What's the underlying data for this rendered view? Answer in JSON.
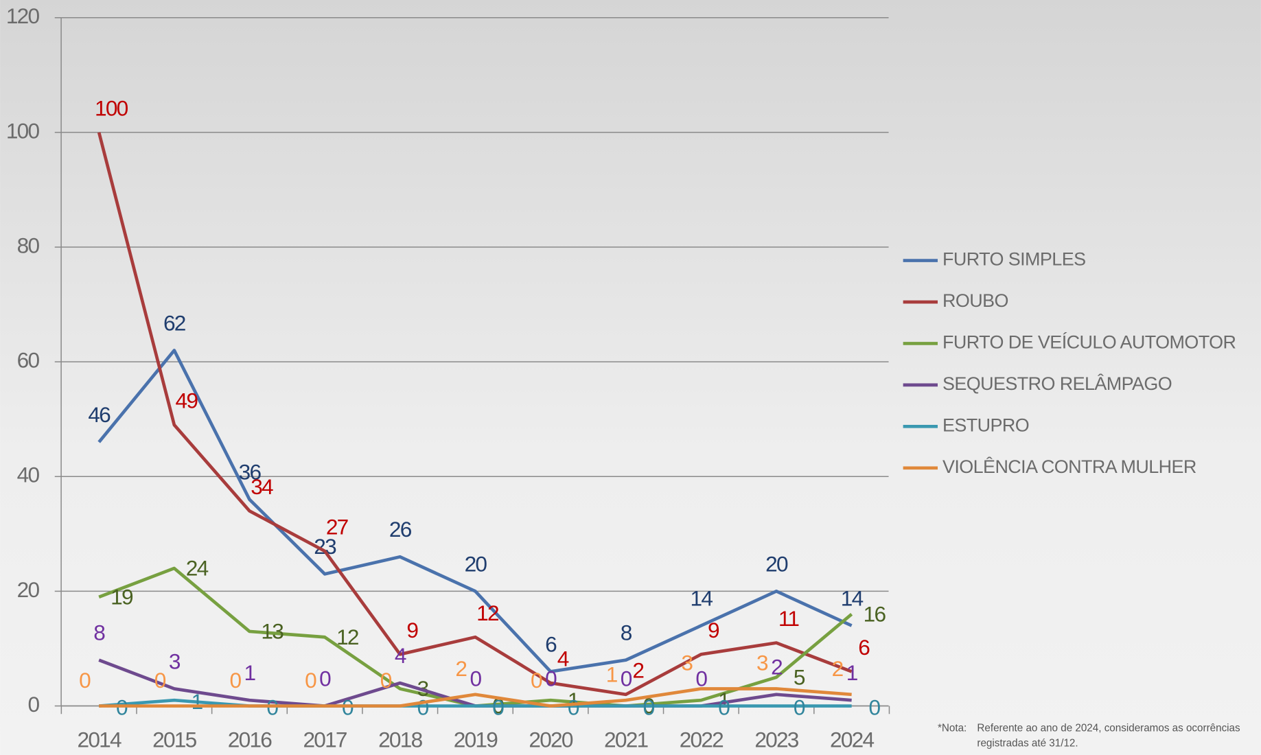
{
  "chart_data": {
    "type": "line",
    "categories": [
      "2014",
      "2015",
      "2016",
      "2017",
      "2018",
      "2019",
      "2020",
      "2021",
      "2022",
      "2023",
      "2024"
    ],
    "series": [
      {
        "name": "FURTO SIMPLES",
        "color": "#4a72ac",
        "label_color": "#1f3d6e",
        "values": [
          46,
          62,
          36,
          23,
          26,
          20,
          6,
          8,
          14,
          20,
          14
        ]
      },
      {
        "name": "ROUBO",
        "color": "#a83c3c",
        "label_color": "#c00000",
        "values": [
          100,
          49,
          34,
          27,
          9,
          12,
          4,
          2,
          9,
          11,
          6
        ]
      },
      {
        "name": "FURTO DE VEÍCULO AUTOMOTOR",
        "color": "#77a040",
        "label_color": "#4a6222",
        "values": [
          19,
          24,
          13,
          12,
          3,
          0,
          1,
          0,
          1,
          5,
          16
        ]
      },
      {
        "name": "SEQUESTRO RELÂMPAGO",
        "color": "#6e4a8e",
        "label_color": "#7030a0",
        "values": [
          8,
          3,
          1,
          0,
          4,
          0,
          0,
          0,
          0,
          2,
          1
        ]
      },
      {
        "name": "ESTUPRO",
        "color": "#3a98b0",
        "label_color": "#31859c",
        "values": [
          0,
          1,
          0,
          0,
          0,
          0,
          0,
          0,
          0,
          0,
          0
        ]
      },
      {
        "name": "VIOLÊNCIA CONTRA MULHER",
        "color": "#e0883a",
        "label_color": "#f79646",
        "values": [
          0,
          0,
          0,
          0,
          0,
          2,
          0,
          1,
          3,
          3,
          2
        ]
      }
    ],
    "ylim": [
      0,
      120
    ],
    "yticks": [
      0,
      20,
      40,
      60,
      80,
      100,
      120
    ],
    "grid": true,
    "legend": "right",
    "note": {
      "label": "*Nota:",
      "lines": [
        "Referente ao ano de 2024, consideramos as  ocorrências",
        "registradas até 31/12."
      ]
    }
  }
}
